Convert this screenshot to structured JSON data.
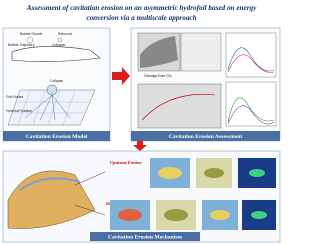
{
  "header": {
    "title_line1": "Assessment of cavitation erosion on an asymmetric hydrofoil based on energy",
    "title_line2": "conversion via a multiscale approach"
  },
  "panels": [
    {
      "label": "Cavitation Erosion Model",
      "annotations": [
        "Bubble Growth",
        "Rebound",
        "Bubble Trajectory",
        "Collapse",
        "Collapse",
        "Grid Nodes",
        "Hydrofoil Surface"
      ]
    },
    {
      "label": "Cavitation Erosion Assessment",
      "annotations": [
        "Damage Rate (%)"
      ]
    },
    {
      "label": "Cavitation Erosion Mechanism",
      "annotations": [
        "Upstream Erosion",
        "Downstream Erosion"
      ]
    }
  ]
}
